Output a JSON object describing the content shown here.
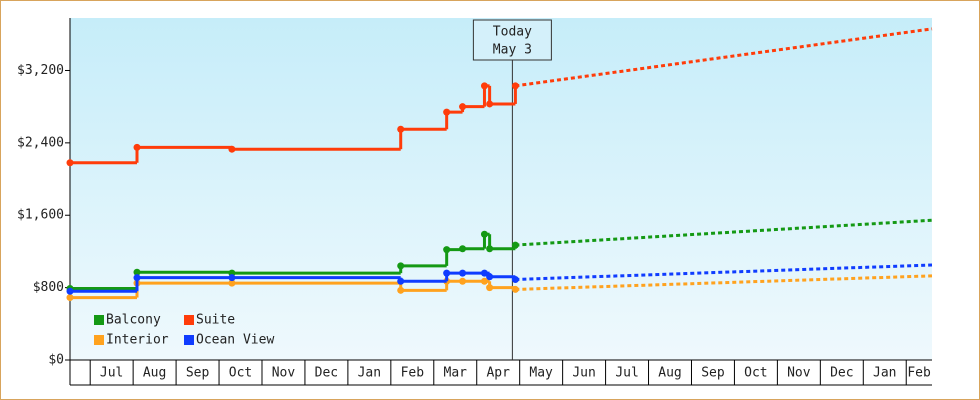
{
  "chart_data": {
    "type": "step-line",
    "categories": [
      null,
      "Jul",
      "Aug",
      "Sep",
      "Oct",
      "Nov",
      "Dec",
      "Jan",
      "Feb",
      "Mar",
      "Apr",
      "May",
      "Jun",
      "Jul",
      "Aug",
      "Sep",
      "Oct",
      "Nov",
      "Dec",
      "Jan",
      "Feb"
    ],
    "xlim": [
      0.53,
      20.6
    ],
    "ylim": [
      0,
      3780
    ],
    "yticks": [
      {
        "value": 0,
        "label": "$0"
      },
      {
        "value": 800,
        "label": "$800"
      },
      {
        "value": 1600,
        "label": "$1,600"
      },
      {
        "value": 2400,
        "label": "$2,400"
      },
      {
        "value": 3200,
        "label": "$3,200"
      }
    ],
    "annotation": {
      "text": [
        "Today",
        "May 3"
      ],
      "x": 10.83
    },
    "legend": "lower left",
    "series": [
      {
        "name": "Balcony",
        "color": "#149914",
        "x": [
          0.53,
          2.09,
          4.3,
          8.23,
          9.3,
          9.67,
          10.18,
          10.3,
          10.9
        ],
        "values": [
          790,
          970,
          960,
          1040,
          1220,
          1230,
          1390,
          1230,
          1270
        ],
        "forecast": {
          "x": [
            10.9,
            20.6
          ],
          "values": [
            1270,
            1545
          ]
        }
      },
      {
        "name": "Suite",
        "color": "#ff3c0a",
        "x": [
          0.53,
          2.09,
          4.3,
          8.23,
          9.3,
          9.67,
          10.18,
          10.3,
          10.9
        ],
        "values": [
          2180,
          2350,
          2330,
          2550,
          2740,
          2800,
          3030,
          2830,
          3030
        ],
        "forecast": {
          "x": [
            10.9,
            20.6
          ],
          "values": [
            3030,
            3660
          ]
        }
      },
      {
        "name": "Interior",
        "color": "#ffa21e",
        "x": [
          0.53,
          2.09,
          4.3,
          8.23,
          9.3,
          9.67,
          10.18,
          10.3,
          10.9
        ],
        "values": [
          690,
          850,
          850,
          770,
          870,
          870,
          870,
          800,
          780
        ],
        "forecast": {
          "x": [
            10.9,
            20.6
          ],
          "values": [
            780,
            930
          ]
        }
      },
      {
        "name": "Ocean View",
        "color": "#0f3cff",
        "x": [
          0.53,
          2.09,
          4.3,
          8.23,
          9.3,
          9.67,
          10.18,
          10.3,
          10.9
        ],
        "values": [
          760,
          910,
          910,
          870,
          960,
          960,
          960,
          920,
          890
        ],
        "forecast": {
          "x": [
            10.9,
            20.6
          ],
          "values": [
            890,
            1050
          ]
        }
      }
    ]
  }
}
